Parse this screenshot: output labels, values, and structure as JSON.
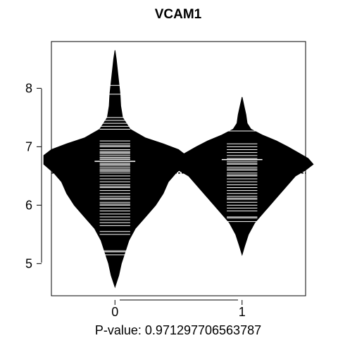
{
  "chart_data": {
    "type": "beanplot",
    "title": "VCAM1",
    "xlabel": "P-value: 0.971297706563787",
    "ylabel": "",
    "categories": [
      "0",
      "1"
    ],
    "y_ticks": [
      "5",
      "6",
      "7",
      "8"
    ],
    "xlim": [
      -0.5,
      1.5
    ],
    "ylim": [
      4.45,
      8.8
    ],
    "overall_mean": 6.55,
    "grid": false,
    "legend": "none",
    "fill_color": "#000000",
    "line_color": "#ffffff",
    "series": [
      {
        "category": "0",
        "mean": 6.75,
        "min": 4.6,
        "max": 8.65,
        "density_shape": [
          [
            4.6,
            0.0
          ],
          [
            4.8,
            0.03
          ],
          [
            5.0,
            0.05
          ],
          [
            5.2,
            0.08
          ],
          [
            5.4,
            0.11
          ],
          [
            5.6,
            0.16
          ],
          [
            5.8,
            0.24
          ],
          [
            6.0,
            0.32
          ],
          [
            6.2,
            0.38
          ],
          [
            6.4,
            0.42
          ],
          [
            6.55,
            0.48
          ],
          [
            6.7,
            0.56
          ],
          [
            6.85,
            0.56
          ],
          [
            6.95,
            0.5
          ],
          [
            7.05,
            0.38
          ],
          [
            7.15,
            0.24
          ],
          [
            7.3,
            0.12
          ],
          [
            7.5,
            0.06
          ],
          [
            7.7,
            0.045
          ],
          [
            7.9,
            0.04
          ],
          [
            8.1,
            0.03
          ],
          [
            8.3,
            0.02
          ],
          [
            8.5,
            0.01
          ],
          [
            8.65,
            0.0
          ]
        ],
        "observations": [
          5.15,
          5.2,
          5.22,
          5.5,
          5.55,
          5.65,
          5.7,
          5.75,
          5.8,
          5.85,
          5.9,
          5.95,
          6.0,
          6.02,
          6.05,
          6.1,
          6.12,
          6.15,
          6.2,
          6.25,
          6.3,
          6.32,
          6.35,
          6.4,
          6.45,
          6.5,
          6.55,
          6.58,
          6.6,
          6.62,
          6.65,
          6.68,
          6.7,
          6.72,
          6.75,
          6.78,
          6.8,
          6.82,
          6.85,
          6.88,
          6.9,
          6.92,
          6.95,
          7.0,
          7.02,
          7.05,
          7.1,
          7.3,
          7.35,
          7.4,
          7.45,
          7.5,
          7.9,
          8.05
        ]
      },
      {
        "category": "1",
        "mean": 6.78,
        "min": 5.15,
        "max": 7.85,
        "density_shape": [
          [
            5.15,
            0.0
          ],
          [
            5.3,
            0.02
          ],
          [
            5.5,
            0.05
          ],
          [
            5.7,
            0.1
          ],
          [
            5.9,
            0.18
          ],
          [
            6.1,
            0.26
          ],
          [
            6.3,
            0.34
          ],
          [
            6.5,
            0.42
          ],
          [
            6.6,
            0.5
          ],
          [
            6.7,
            0.56
          ],
          [
            6.8,
            0.52
          ],
          [
            6.9,
            0.44
          ],
          [
            7.0,
            0.36
          ],
          [
            7.1,
            0.27
          ],
          [
            7.2,
            0.16
          ],
          [
            7.3,
            0.07
          ],
          [
            7.4,
            0.04
          ],
          [
            7.55,
            0.03
          ],
          [
            7.7,
            0.015
          ],
          [
            7.85,
            0.0
          ]
        ],
        "observations": [
          5.72,
          5.78,
          5.8,
          5.9,
          5.95,
          6.0,
          6.05,
          6.1,
          6.12,
          6.15,
          6.2,
          6.25,
          6.3,
          6.35,
          6.4,
          6.45,
          6.5,
          6.52,
          6.55,
          6.6,
          6.62,
          6.65,
          6.7,
          6.72,
          6.75,
          6.8,
          6.85,
          6.9,
          6.95,
          7.0,
          7.05,
          7.27
        ]
      }
    ]
  }
}
